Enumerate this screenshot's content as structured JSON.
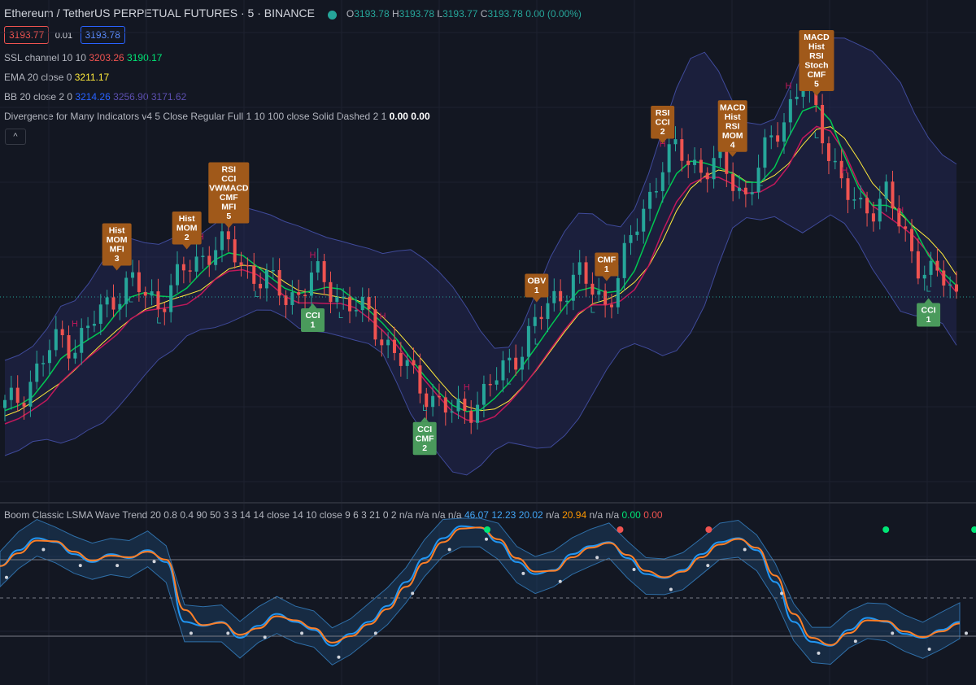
{
  "header": {
    "symbol_line": "Ethereum / TetherUS PERPETUAL FUTURES · 5 · BINANCE",
    "o_label": "O",
    "o_value": "3193.78",
    "h_label": "H",
    "h_value": "3193.78",
    "l_label": "L",
    "l_value": "3193.77",
    "c_label": "C",
    "c_value": "3193.78",
    "change": "0.00 (0.00%)",
    "bid": "3193.77",
    "spread": "0.01",
    "ask": "3193.78"
  },
  "indicators": {
    "ssl": {
      "label": "SSL channel 10 10",
      "v1": "3203.26",
      "v2": "3190.17"
    },
    "ema": {
      "label": "EMA 20 close 0",
      "v1": "3211.17"
    },
    "bb": {
      "label": "BB 20 close 2 0",
      "v1": "3214.26",
      "v2": "3256.90",
      "v3": "3171.62"
    },
    "div": {
      "label": "Divergence for Many Indicators v4 5 Close Regular Full 1 10 100 close Solid Dashed 2 1",
      "v1": "0.00",
      "v2": "0.00"
    }
  },
  "collapse_label": "^",
  "wavetrend": {
    "label": "Boom Classic LSMA Wave Trend 20 0.8 0.4 90 50 3 3 14 14 close 14 10 close 9 6 3 21 0 2",
    "values": [
      "n/a",
      "n/a",
      "n/a",
      "n/a",
      "46.07",
      "12.23",
      "20.02",
      "n/a",
      "20.94",
      "n/a",
      "n/a",
      "0.00",
      "0.00"
    ]
  },
  "colors": {
    "up": "#26a69a",
    "down": "#ef5350",
    "ssl_up": "#00c853",
    "ssl_dn": "#c2185b",
    "ema": "#ffeb3b",
    "bb_fill": "#2a2e6e",
    "bear_label": "#a0591a",
    "bull_label": "#4a9a5c"
  },
  "chart_data": {
    "type": "candlestick",
    "symbol": "ETHUSDT",
    "timeframe": "5",
    "price_path": [
      3148,
      3152,
      3160,
      3168,
      3175,
      3172,
      3178,
      3185,
      3192,
      3196,
      3190,
      3188,
      3195,
      3200,
      3205,
      3210,
      3208,
      3202,
      3198,
      3195,
      3190,
      3192,
      3198,
      3194,
      3190,
      3186,
      3182,
      3175,
      3168,
      3160,
      3155,
      3150,
      3145,
      3148,
      3152,
      3158,
      3165,
      3172,
      3180,
      3188,
      3194,
      3198,
      3192,
      3188,
      3200,
      3215,
      3228,
      3240,
      3245,
      3242,
      3238,
      3240,
      3235,
      3228,
      3240,
      3252,
      3262,
      3270,
      3258,
      3245,
      3230,
      3222,
      3225,
      3230,
      3215,
      3205,
      3200,
      3196,
      3190
    ],
    "divergence_labels": [
      {
        "text": "Hist MOM MFI 3",
        "kind": "bearish"
      },
      {
        "text": "Hist MOM 2",
        "kind": "bearish"
      },
      {
        "text": "RSI CCI VWMACD CMF MFI 5",
        "kind": "bearish"
      },
      {
        "text": "OBV 1",
        "kind": "bearish"
      },
      {
        "text": "CMF 1",
        "kind": "bearish"
      },
      {
        "text": "RSI CCI 2",
        "kind": "bearish"
      },
      {
        "text": "MACD Hist RSI MOM 4",
        "kind": "bearish"
      },
      {
        "text": "MACD Hist RSI Stoch CMF 5",
        "kind": "bearish"
      },
      {
        "text": "CCI 1",
        "kind": "bullish"
      },
      {
        "text": "CCI CMF 2",
        "kind": "bullish"
      },
      {
        "text": "CCI 1",
        "kind": "bullish"
      }
    ],
    "hl_markers": [
      {
        "t": "H"
      },
      {
        "t": "L"
      },
      {
        "t": "H"
      },
      {
        "t": "L"
      },
      {
        "t": "H"
      },
      {
        "t": "H"
      },
      {
        "t": "L"
      },
      {
        "t": "L"
      },
      {
        "t": "H"
      },
      {
        "t": "L"
      },
      {
        "t": "L"
      },
      {
        "t": "L"
      },
      {
        "t": "L"
      },
      {
        "t": "H"
      },
      {
        "t": "L"
      },
      {
        "t": "H"
      },
      {
        "t": "H"
      },
      {
        "t": "L"
      },
      {
        "t": "H"
      },
      {
        "t": "L"
      }
    ],
    "wave_trend": [
      40,
      60,
      75,
      70,
      55,
      45,
      55,
      50,
      60,
      45,
      -30,
      -35,
      -30,
      -50,
      -35,
      -20,
      -30,
      -40,
      -60,
      -45,
      -30,
      -10,
      20,
      50,
      75,
      90,
      88,
      70,
      45,
      30,
      35,
      55,
      65,
      70,
      50,
      30,
      25,
      35,
      55,
      70,
      75,
      60,
      20,
      -30,
      -55,
      -60,
      -40,
      -25,
      -30,
      -45,
      -50,
      -40,
      -30
    ],
    "wave_dots_green": [
      11,
      20,
      22
    ],
    "wave_dots_red": [
      14,
      16
    ]
  }
}
